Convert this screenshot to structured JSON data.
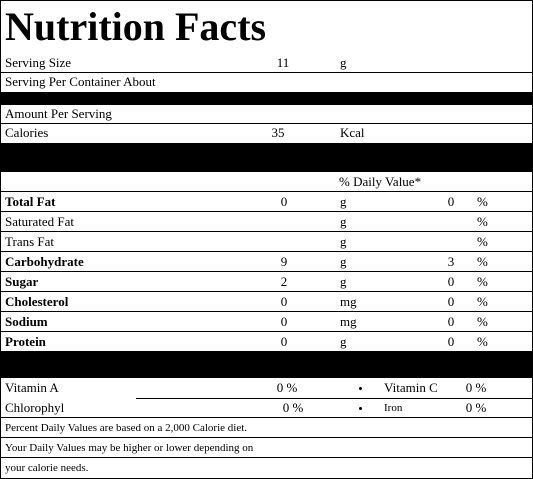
{
  "header": {
    "title": "Nutrition Facts"
  },
  "serving": {
    "size_label": "Serving Size",
    "size_value": 11,
    "size_unit": "g",
    "per_container_label": "Serving Per Container About"
  },
  "amount_per_serving": "Amount Per Serving",
  "calories": {
    "label": "Calories",
    "value": 35,
    "unit": "Kcal"
  },
  "daily_value_header": "% Daily Value*",
  "nutrients": [
    {
      "name": "Total Fat",
      "bold": true,
      "amount": 0,
      "unit": "g",
      "dv": 0,
      "dv_unit": "%"
    },
    {
      "name": "Saturated Fat",
      "bold": false,
      "unit": "g",
      "dv_unit": "%"
    },
    {
      "name": "Trans Fat",
      "bold": false,
      "unit": "g",
      "dv_unit": "%"
    },
    {
      "name": "Carbohydrate",
      "bold": true,
      "amount": 9,
      "unit": "g",
      "dv": 3,
      "dv_unit": "%"
    },
    {
      "name": "Sugar",
      "bold": true,
      "amount": 2,
      "unit": "g",
      "dv": 0,
      "dv_unit": "%"
    },
    {
      "name": "Cholesterol",
      "bold": true,
      "amount": 0,
      "unit": "mg",
      "dv": 0,
      "dv_unit": "%"
    },
    {
      "name": "Sodium",
      "bold": true,
      "amount": 0,
      "unit": "mg",
      "dv": 0,
      "dv_unit": "%"
    },
    {
      "name": "Protein",
      "bold": true,
      "amount": 0,
      "unit": "g",
      "dv": 0,
      "dv_unit": "%"
    }
  ],
  "vitamins": [
    {
      "name": "Vitamin A",
      "value": "0 %"
    },
    {
      "name": "Vitamin C",
      "value": "0 %"
    },
    {
      "name": "Chlorophyl",
      "value": "0 %"
    },
    {
      "name": "Iron",
      "value": "0 %"
    }
  ],
  "footnotes": [
    "Percent Daily Values are based on a 2,000 Calorie diet.",
    "Your Daily Values may be higher or lower depending on",
    "your calorie needs."
  ]
}
